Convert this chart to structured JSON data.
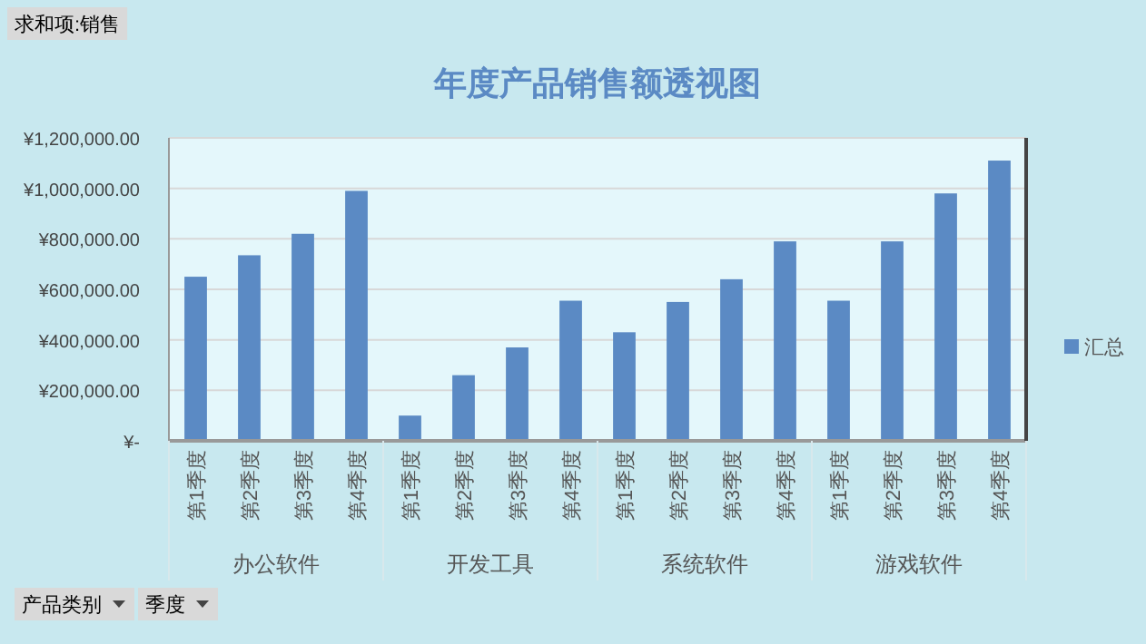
{
  "chart_data": {
    "type": "bar",
    "title": "年度产品销售额透视图",
    "categories": [
      "第1季度",
      "第2季度",
      "第3季度",
      "第4季度",
      "第1季度",
      "第2季度",
      "第3季度",
      "第4季度",
      "第1季度",
      "第2季度",
      "第3季度",
      "第4季度",
      "第1季度",
      "第2季度",
      "第3季度",
      "第4季度"
    ],
    "series": [
      {
        "name": "汇总",
        "color": "#5b8ac4",
        "values": [
          650000,
          735000,
          820000,
          990000,
          100000,
          260000,
          370000,
          555000,
          430000,
          550000,
          640000,
          790000,
          555000,
          790000,
          980000,
          1110000
        ]
      }
    ],
    "ylim": [
      0,
      1200000
    ],
    "yticks": [
      {
        "value": 0,
        "label": "¥-"
      },
      {
        "value": 200000,
        "label": "¥200,000.00"
      },
      {
        "value": 400000,
        "label": "¥400,000.00"
      },
      {
        "value": 600000,
        "label": "¥600,000.00"
      },
      {
        "value": 800000,
        "label": "¥800,000.00"
      },
      {
        "value": 1000000,
        "label": "¥1,000,000.00"
      },
      {
        "value": 1200000,
        "label": "¥1,200,000.00"
      }
    ],
    "grid": "y",
    "legend": "right",
    "annotations": [
      "办公软件",
      "开发工具",
      "系统软件",
      "游戏软件",
      "求和项:销售",
      "产品类别",
      "季度"
    ]
  }
}
